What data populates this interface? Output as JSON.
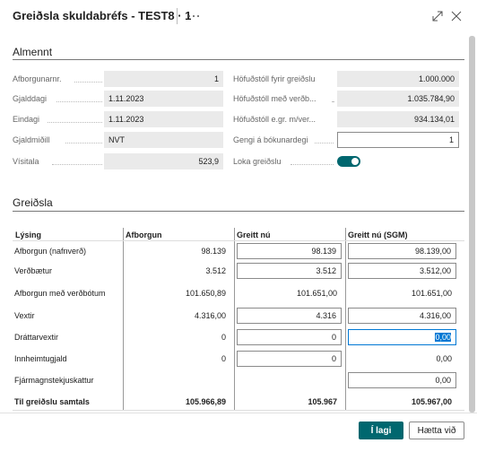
{
  "header": {
    "title": "Greiðsla skuldabréfs - TEST8 · 1"
  },
  "general": {
    "title": "Almennt",
    "left": [
      {
        "label": "Afborgunarnr.",
        "value": "1"
      },
      {
        "label": "Gjalddagi",
        "value": "1.11.2023"
      },
      {
        "label": "Eindagi",
        "value": "1.11.2023"
      },
      {
        "label": "Gjaldmiðill",
        "value": "NVT"
      },
      {
        "label": "Vísitala",
        "value": "523,9"
      }
    ],
    "right": [
      {
        "label": "Höfuðstóll fyrir greiðslu",
        "value": "1.000.000"
      },
      {
        "label": "Höfuðstóll með verðb...",
        "value": "1.035.784,90"
      },
      {
        "label": "Höfuðstóll e.gr. m/ver...",
        "value": "934.134,01"
      },
      {
        "label": "Gengi á bókunardegi",
        "value": "1"
      },
      {
        "label": "Loka greiðslu"
      }
    ]
  },
  "payment": {
    "title": "Greiðsla",
    "columns": [
      "Lýsing",
      "Afborgun",
      "Greitt nú",
      "Greitt nú (SGM)"
    ],
    "rows": [
      [
        "Afborgun (nafnverð)",
        "98.139",
        "98.139",
        "98.139,00"
      ],
      [
        "Verðbætur",
        "3.512",
        "3.512",
        "3.512,00"
      ],
      [
        "Afborgun með verðbótum",
        "101.650,89",
        "101.651,00",
        "101.651,00"
      ],
      [
        "Vextir",
        "4.316,00",
        "4.316",
        "4.316,00"
      ],
      [
        "Dráttarvextir",
        "0",
        "0",
        "0,00"
      ],
      [
        "Innheimtugjald",
        "0",
        "0",
        "0,00"
      ],
      [
        "Fjármagnstekjuskattur",
        null,
        null,
        "0,00"
      ],
      [
        "Til greiðslu samtals",
        "105.966,89",
        "105.967",
        "105.967,00"
      ]
    ]
  },
  "buttons": [
    "Í lagi",
    "Hætta við"
  ]
}
